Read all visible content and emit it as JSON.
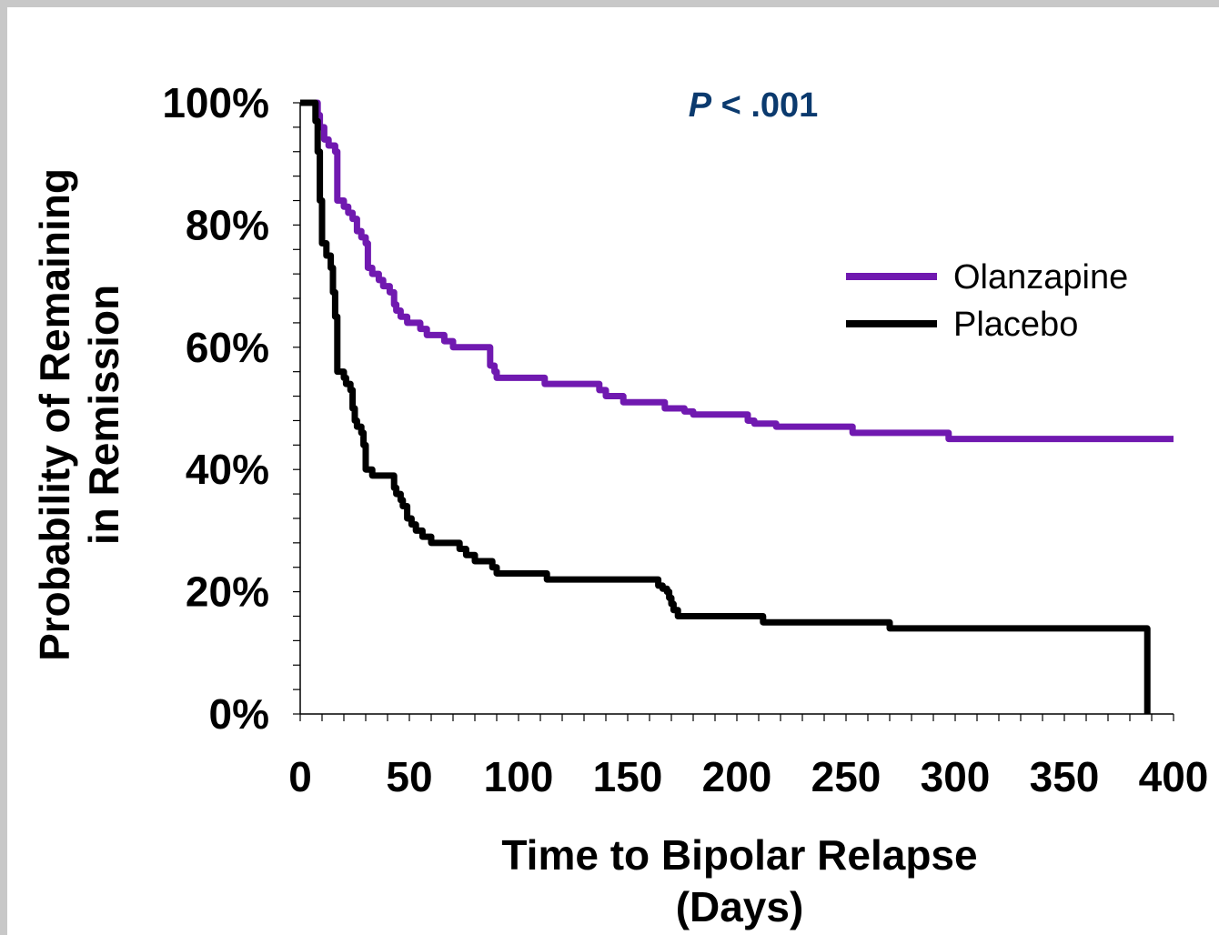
{
  "chart_data": {
    "type": "line",
    "step": true,
    "title": "",
    "xlabel": [
      "Time to Bipolar Relapse",
      "(Days)"
    ],
    "ylabel": [
      "Probability of Remaining",
      "in Remission"
    ],
    "xlim": [
      0,
      400
    ],
    "ylim": [
      0,
      100
    ],
    "x_ticks": [
      0,
      50,
      100,
      150,
      200,
      250,
      300,
      350,
      400
    ],
    "x_tick_labels": [
      "0",
      "50",
      "100",
      "150",
      "200",
      "250",
      "300",
      "350",
      "400"
    ],
    "y_ticks": [
      0,
      20,
      40,
      60,
      80,
      100
    ],
    "y_tick_labels": [
      "0%",
      "20%",
      "40%",
      "60%",
      "80%",
      "100%"
    ],
    "grid": false,
    "legend_position": "right",
    "annotation": {
      "italic_part": "P",
      "rest": " < .001",
      "color": "#0b3a6e"
    },
    "series": [
      {
        "name": "Olanzapine",
        "color": "#7019b0",
        "points": [
          [
            0,
            100
          ],
          [
            7,
            100
          ],
          [
            8,
            98
          ],
          [
            9,
            96
          ],
          [
            11,
            94
          ],
          [
            13,
            93
          ],
          [
            16,
            92
          ],
          [
            17,
            84
          ],
          [
            20,
            83
          ],
          [
            22,
            82
          ],
          [
            24,
            81
          ],
          [
            26,
            79
          ],
          [
            28,
            78
          ],
          [
            30,
            77
          ],
          [
            31,
            73
          ],
          [
            33,
            72
          ],
          [
            36,
            71
          ],
          [
            38,
            70
          ],
          [
            41,
            69
          ],
          [
            43,
            67
          ],
          [
            44,
            66
          ],
          [
            46,
            65
          ],
          [
            49,
            64
          ],
          [
            55,
            63
          ],
          [
            58,
            62
          ],
          [
            66,
            61
          ],
          [
            70,
            60
          ],
          [
            86,
            60
          ],
          [
            87,
            57
          ],
          [
            89,
            56
          ],
          [
            90,
            55
          ],
          [
            106,
            55
          ],
          [
            112,
            54
          ],
          [
            130,
            54
          ],
          [
            137,
            53
          ],
          [
            140,
            52
          ],
          [
            148,
            51
          ],
          [
            166,
            51
          ],
          [
            167,
            50
          ],
          [
            172,
            50
          ],
          [
            176,
            49.5
          ],
          [
            180,
            49
          ],
          [
            202,
            49
          ],
          [
            205,
            48
          ],
          [
            208,
            47.5
          ],
          [
            218,
            47
          ],
          [
            250,
            47
          ],
          [
            253,
            46
          ],
          [
            296,
            46
          ],
          [
            297,
            45
          ],
          [
            400,
            45
          ]
        ]
      },
      {
        "name": "Placebo",
        "color": "#000000",
        "points": [
          [
            0,
            100
          ],
          [
            5,
            100
          ],
          [
            7,
            97
          ],
          [
            8,
            92
          ],
          [
            9,
            84
          ],
          [
            10,
            77
          ],
          [
            12,
            75
          ],
          [
            14,
            73
          ],
          [
            15,
            69
          ],
          [
            16,
            65
          ],
          [
            17,
            56
          ],
          [
            20,
            55
          ],
          [
            21,
            54
          ],
          [
            23,
            53
          ],
          [
            24,
            50
          ],
          [
            25,
            48
          ],
          [
            26,
            47
          ],
          [
            28,
            46
          ],
          [
            29,
            44
          ],
          [
            30,
            40
          ],
          [
            33,
            39
          ],
          [
            41,
            39
          ],
          [
            43,
            37
          ],
          [
            44,
            36
          ],
          [
            46,
            35
          ],
          [
            47,
            34
          ],
          [
            49,
            32
          ],
          [
            51,
            31
          ],
          [
            53,
            30
          ],
          [
            56,
            29
          ],
          [
            60,
            28
          ],
          [
            71,
            28
          ],
          [
            73,
            27
          ],
          [
            76,
            26
          ],
          [
            80,
            25
          ],
          [
            86,
            25
          ],
          [
            88,
            24
          ],
          [
            90,
            23
          ],
          [
            112,
            23
          ],
          [
            113,
            22
          ],
          [
            163,
            22
          ],
          [
            164,
            21
          ],
          [
            166,
            20.5
          ],
          [
            168,
            20
          ],
          [
            169,
            19
          ],
          [
            170,
            18
          ],
          [
            171,
            17
          ],
          [
            173,
            16
          ],
          [
            210,
            16
          ],
          [
            212,
            15
          ],
          [
            268,
            15
          ],
          [
            270,
            14
          ],
          [
            388,
            14
          ],
          [
            388,
            0
          ]
        ]
      }
    ]
  }
}
